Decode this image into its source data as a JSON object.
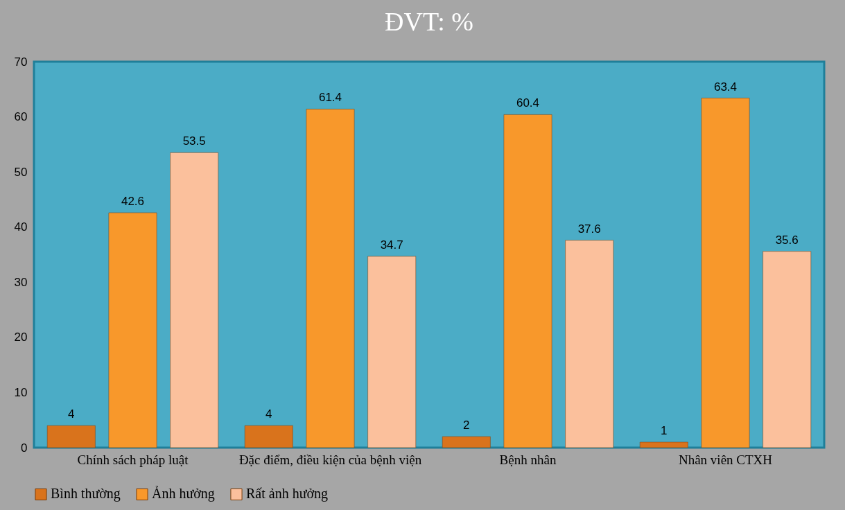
{
  "chart_data": {
    "type": "bar",
    "title": "ĐVT: %",
    "categories": [
      "Chính sách pháp luật",
      "Đặc điểm, điều kiện của bệnh viện",
      "Bệnh nhân",
      "Nhân viên CTXH"
    ],
    "series": [
      {
        "name": "Bình thường",
        "color": "#d9731c",
        "values": [
          4,
          4,
          2,
          1
        ]
      },
      {
        "name": "Ảnh hưởng",
        "color": "#f8982b",
        "values": [
          42.6,
          61.4,
          60.4,
          63.4
        ]
      },
      {
        "name": "Rất ảnh hưởng",
        "color": "#fbc09c",
        "values": [
          53.5,
          34.7,
          37.6,
          35.6
        ]
      }
    ],
    "ylim": [
      0,
      70
    ],
    "yticks": [
      0,
      10,
      20,
      30,
      40,
      50,
      60,
      70
    ],
    "grid": false,
    "legend": "bottom",
    "data_labels": true
  }
}
